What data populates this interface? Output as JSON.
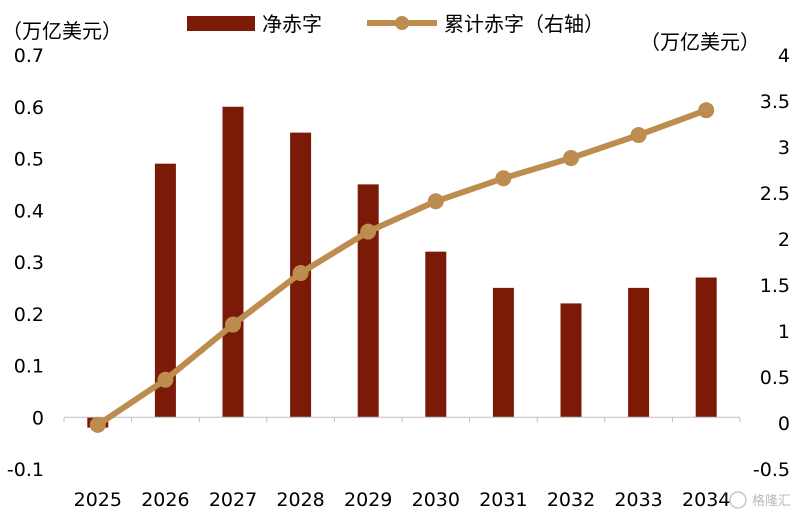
{
  "chart_data": {
    "type": "bar+line",
    "left_axis_unit": "（万亿美元）",
    "right_axis_unit": "（万亿美元）",
    "categories": [
      "2025",
      "2026",
      "2027",
      "2028",
      "2029",
      "2030",
      "2031",
      "2032",
      "2033",
      "2034"
    ],
    "series": [
      {
        "name": "净赤字",
        "type": "bar",
        "axis": "left",
        "color": "#7b1a07",
        "values": [
          -0.02,
          0.49,
          0.6,
          0.55,
          0.45,
          0.32,
          0.25,
          0.22,
          0.25,
          0.27
        ]
      },
      {
        "name": "累计赤字（右轴）",
        "type": "line",
        "axis": "right",
        "color": "#bd8c4f",
        "values": [
          -0.02,
          0.47,
          1.07,
          1.63,
          2.08,
          2.41,
          2.66,
          2.88,
          3.13,
          3.4
        ]
      }
    ],
    "left_axis": {
      "ticks": [
        "0.7",
        "0.6",
        "0.5",
        "0.4",
        "0.3",
        "0.2",
        "0.1",
        "0",
        "-0.1"
      ],
      "ylim": [
        -0.1,
        0.7
      ]
    },
    "right_axis": {
      "ticks": [
        "4",
        "3.5",
        "3",
        "2.5",
        "2",
        "1.5",
        "1",
        "0.5",
        "0",
        "-0.5"
      ],
      "ylim": [
        -0.5,
        4
      ]
    },
    "legend": "top",
    "grid": false
  },
  "watermark": {
    "text": "格隆汇"
  }
}
